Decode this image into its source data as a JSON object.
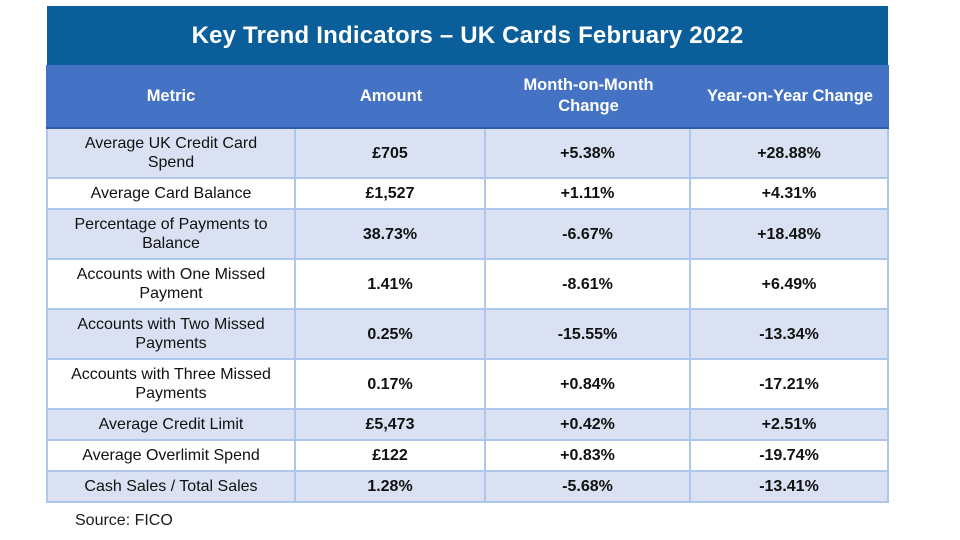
{
  "title": "Key Trend Indicators – UK Cards February 2022",
  "source": "Source: FICO",
  "colors": {
    "title_bar": "#0A5E9A",
    "header_row": "#4472C4",
    "alt_row": "#D9E1F2",
    "grid_line": "#AEC6E9"
  },
  "chart_data": {
    "type": "table",
    "title": "Key Trend Indicators – UK Cards February 2022",
    "columns": [
      "Metric",
      "Amount",
      "Month-on-Month Change",
      "Year-on-Year Change"
    ],
    "rows": [
      [
        "Average UK Credit Card Spend",
        "£705",
        "+5.38%",
        "+28.88%"
      ],
      [
        "Average Card Balance",
        "£1,527",
        "+1.11%",
        "+4.31%"
      ],
      [
        "Percentage of Payments to Balance",
        "38.73%",
        "-6.67%",
        "+18.48%"
      ],
      [
        "Accounts with One Missed Payment",
        "1.41%",
        "-8.61%",
        "+6.49%"
      ],
      [
        "Accounts with Two Missed Payments",
        "0.25%",
        "-15.55%",
        "-13.34%"
      ],
      [
        "Accounts with Three Missed Payments",
        "0.17%",
        "+0.84%",
        "-17.21%"
      ],
      [
        "Average Credit Limit",
        "£5,473",
        "+0.42%",
        "+2.51%"
      ],
      [
        "Average Overlimit Spend",
        "£122",
        "+0.83%",
        "-19.74%"
      ],
      [
        "Cash Sales / Total Sales",
        "1.28%",
        "-5.68%",
        "-13.41%"
      ]
    ],
    "source": "Source: FICO"
  }
}
